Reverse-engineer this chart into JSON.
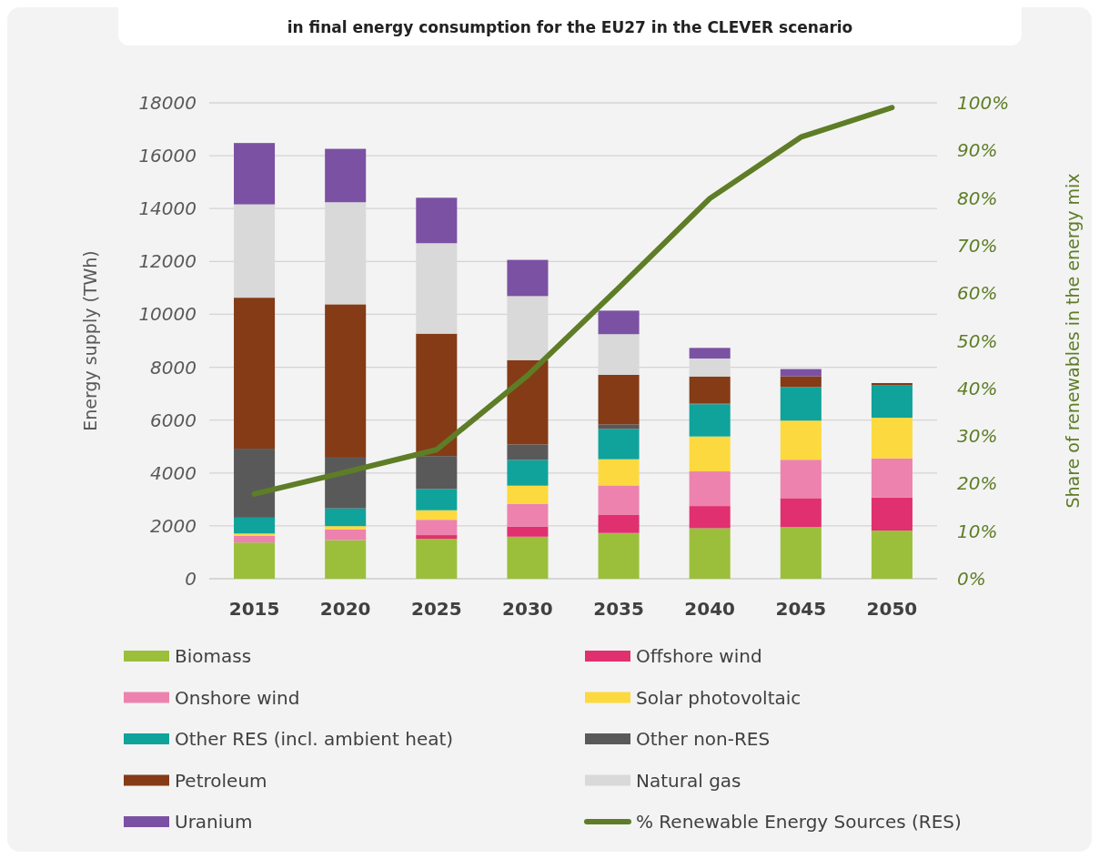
{
  "chart_data": {
    "type": "bar",
    "title": "in final energy consumption for the EU27 in the CLEVER scenario",
    "ylabel": "Energy supply (TWh)",
    "y2label": "Share of renewables in the energy mix",
    "stacked": true,
    "grid": "y",
    "legend": "bottom",
    "categories": [
      "2015",
      "2020",
      "2025",
      "2030",
      "2035",
      "2040",
      "2045",
      "2050"
    ],
    "ylim": [
      0,
      18000
    ],
    "yticks": [
      0,
      2000,
      4000,
      6000,
      8000,
      10000,
      12000,
      14000,
      16000,
      18000
    ],
    "y2lim": [
      0,
      100
    ],
    "y2ticks": [
      {
        "value": 0,
        "label": "0%"
      },
      {
        "value": 10,
        "label": "10%"
      },
      {
        "value": 20,
        "label": "20%"
      },
      {
        "value": 30,
        "label": "30%"
      },
      {
        "value": 40,
        "label": "40%"
      },
      {
        "value": 50,
        "label": "50%"
      },
      {
        "value": 60,
        "label": "60%"
      },
      {
        "value": 70,
        "label": "70%"
      },
      {
        "value": 80,
        "label": "80%"
      },
      {
        "value": 90,
        "label": "90%"
      },
      {
        "value": 100,
        "label": "100%"
      }
    ],
    "series": [
      {
        "name": "Biomass",
        "color": "#9bbf3b",
        "values": [
          1370,
          1460,
          1510,
          1590,
          1730,
          1910,
          1950,
          1820
        ]
      },
      {
        "name": "Offshore wind",
        "color": "#e0306f",
        "values": [
          0,
          0,
          140,
          380,
          680,
          840,
          1100,
          1250
        ]
      },
      {
        "name": "Onshore wind",
        "color": "#ec82ad",
        "values": [
          260,
          400,
          580,
          860,
          1120,
          1310,
          1450,
          1480
        ]
      },
      {
        "name": "Solar photovoltaic",
        "color": "#fcd93f",
        "values": [
          80,
          130,
          360,
          690,
          990,
          1320,
          1480,
          1540
        ]
      },
      {
        "name": "Other RES (incl. ambient heat)",
        "color": "#0fa39b",
        "values": [
          600,
          670,
          800,
          970,
          1140,
          1220,
          1270,
          1220
        ]
      },
      {
        "name": "Other non-RES",
        "color": "#595959",
        "values": [
          2610,
          1920,
          1250,
          590,
          180,
          30,
          0,
          0
        ]
      },
      {
        "name": "Petroleum",
        "color": "#843b16",
        "values": [
          5710,
          5800,
          4630,
          3190,
          1870,
          1020,
          410,
          90
        ]
      },
      {
        "name": "Natural gas",
        "color": "#d9d9d9",
        "values": [
          3530,
          3860,
          3420,
          2420,
          1540,
          680,
          0,
          0
        ]
      },
      {
        "name": "Uranium",
        "color": "#7b51a3",
        "values": [
          2320,
          2020,
          1720,
          1370,
          890,
          400,
          270,
          0
        ]
      },
      {
        "name": "% Renewable Energy Sources (RES)",
        "type": "line",
        "axis": "y2",
        "color": "#5e7d26",
        "values": [
          17.8,
          22.4,
          27.1,
          42.7,
          61.1,
          79.9,
          92.8,
          99
        ]
      }
    ]
  }
}
